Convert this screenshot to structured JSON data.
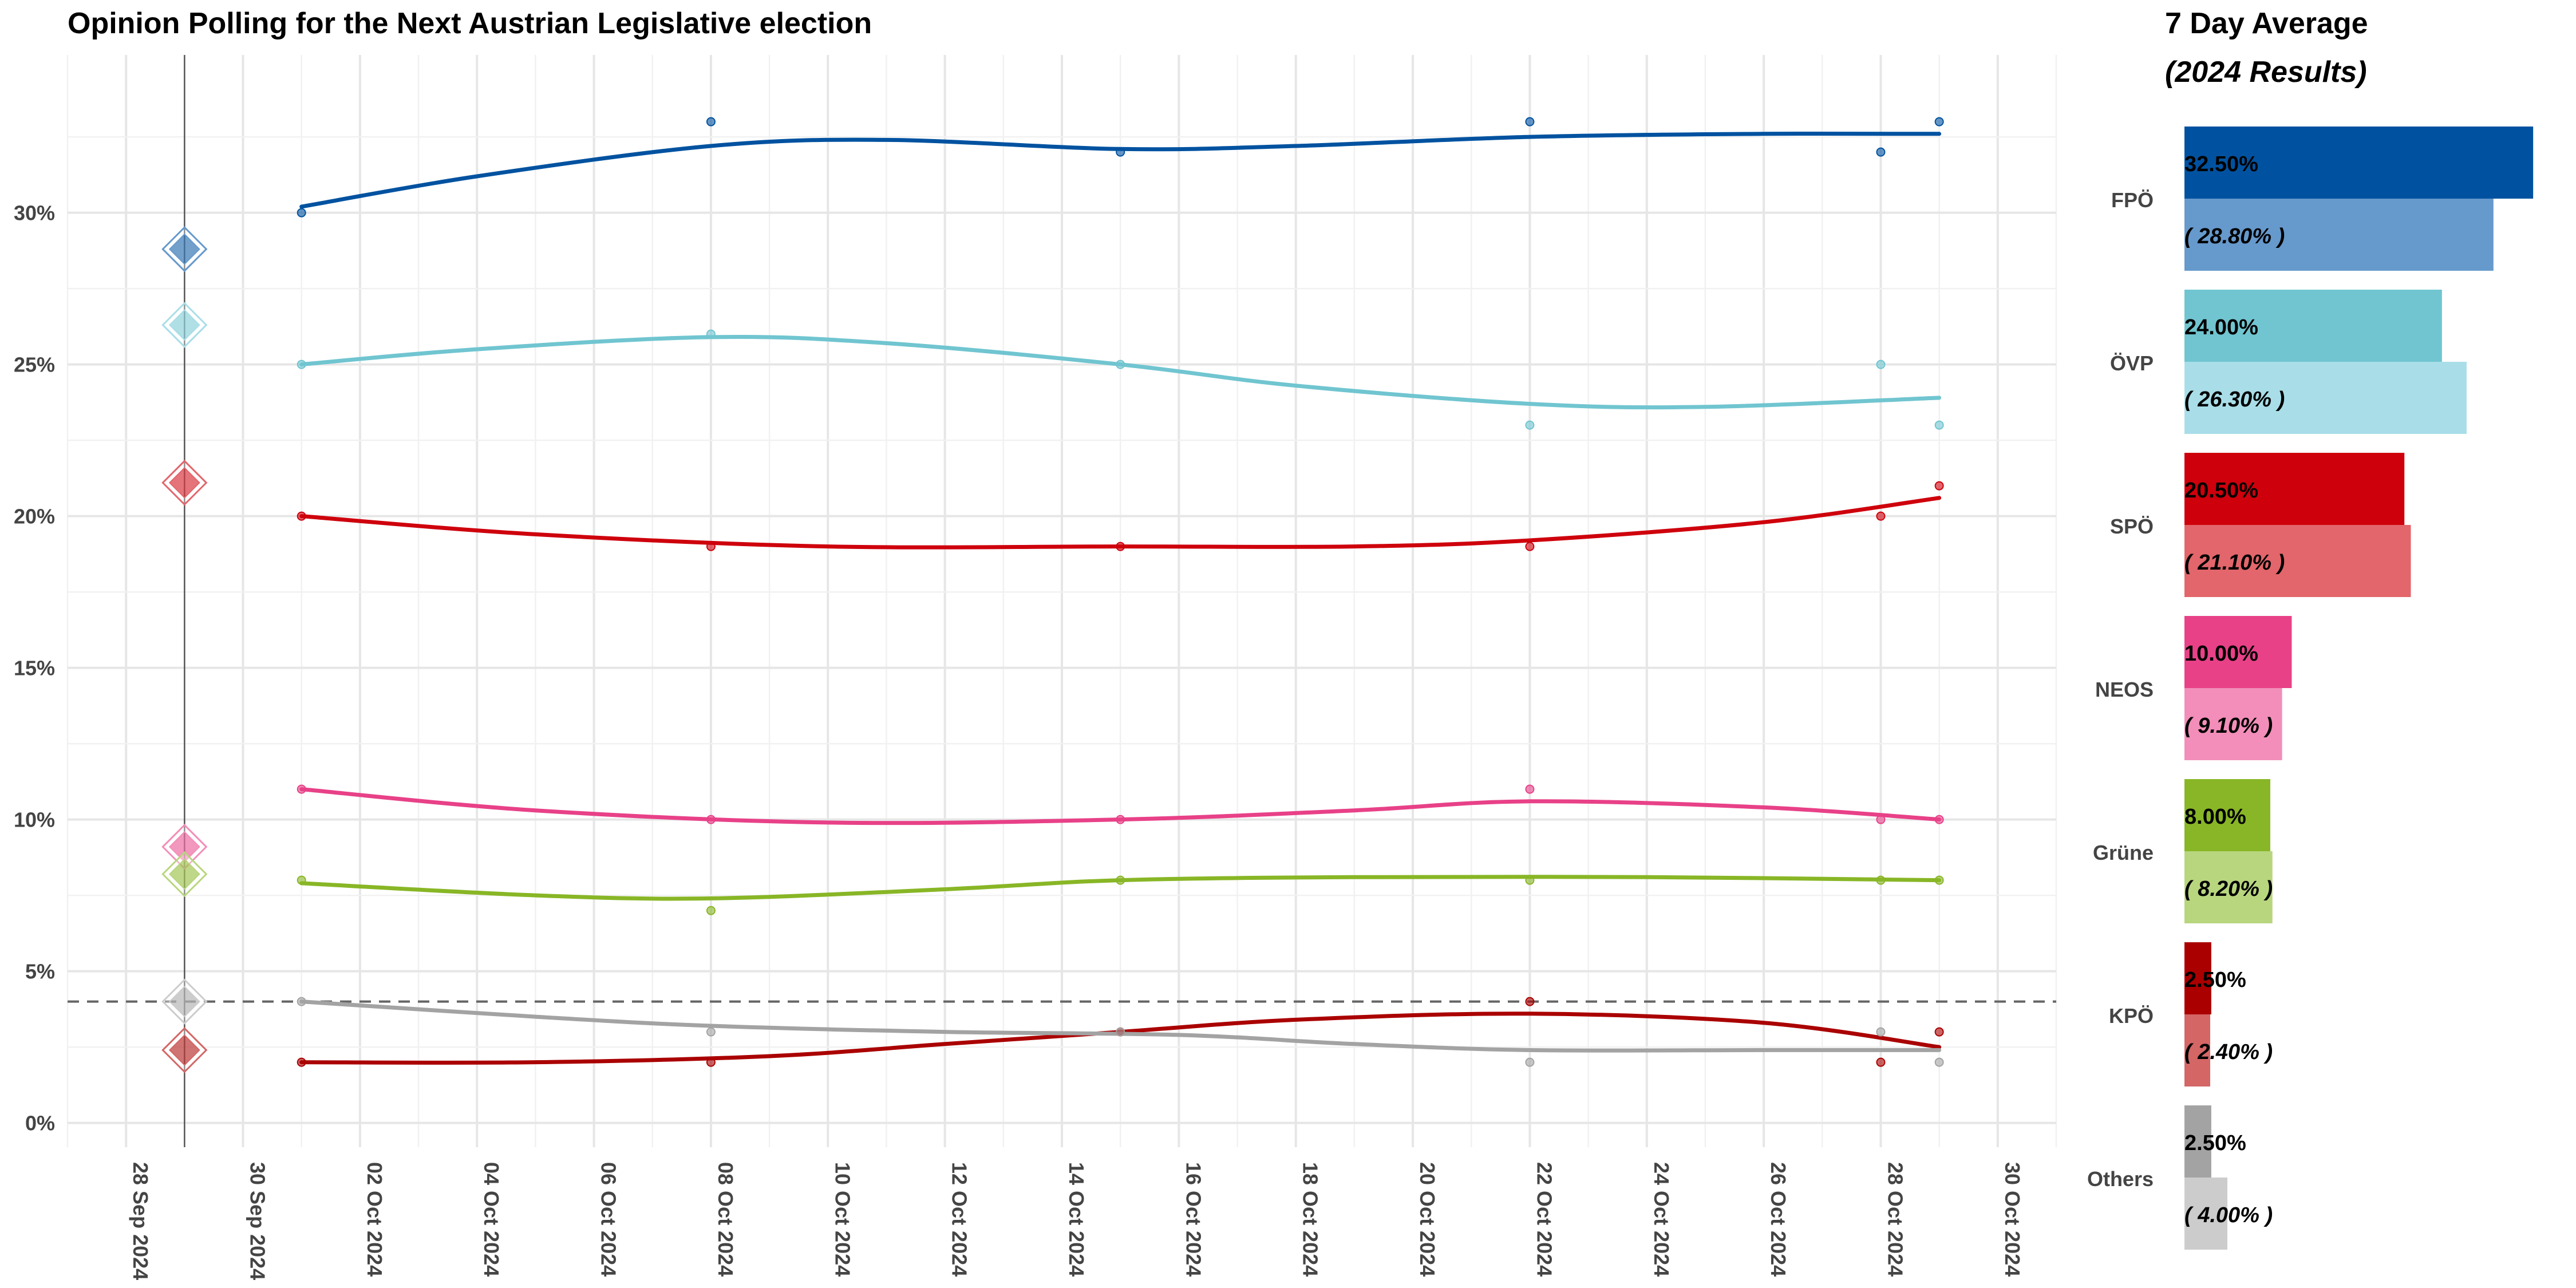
{
  "chart_data": [
    {
      "type": "line",
      "title": "Opinion Polling for the Next Austrian Legislative election",
      "xlabel": "",
      "ylabel": "",
      "x_range": [
        "2024-09-27",
        "2024-10-31"
      ],
      "x_ticks": [
        "28 Sep 2024",
        "30 Sep 2024",
        "02 Oct 2024",
        "04 Oct 2024",
        "06 Oct 2024",
        "08 Oct 2024",
        "10 Oct 2024",
        "12 Oct 2024",
        "14 Oct 2024",
        "16 Oct 2024",
        "18 Oct 2024",
        "20 Oct 2024",
        "22 Oct 2024",
        "24 Oct 2024",
        "26 Oct 2024",
        "28 Oct 2024",
        "30 Oct 2024"
      ],
      "y_range": [
        -0.8,
        35.2
      ],
      "y_ticks": [
        "0%",
        "5%",
        "10%",
        "15%",
        "20%",
        "25%",
        "30%"
      ],
      "grid": true,
      "threshold_line": 4,
      "election_date": "2024-09-29",
      "series": [
        {
          "name": "FPÖ",
          "color": "#0052A0",
          "light_color": "#6699CC",
          "result": 28.8,
          "polls": [
            [
              "2024-10-01",
              30
            ],
            [
              "2024-10-08",
              33
            ],
            [
              "2024-10-15",
              32
            ],
            [
              "2024-10-22",
              33
            ],
            [
              "2024-10-28",
              32
            ],
            [
              "2024-10-29",
              33
            ]
          ],
          "trend": [
            [
              "2024-10-01",
              30.2
            ],
            [
              "2024-10-04",
              31.2
            ],
            [
              "2024-10-08",
              32.2
            ],
            [
              "2024-10-11",
              32.4
            ],
            [
              "2024-10-15",
              32.1
            ],
            [
              "2024-10-18",
              32.2
            ],
            [
              "2024-10-22",
              32.5
            ],
            [
              "2024-10-26",
              32.6
            ],
            [
              "2024-10-29",
              32.6
            ]
          ]
        },
        {
          "name": "ÖVP",
          "color": "#70C5D0",
          "light_color": "#A9DEE8",
          "result": 26.3,
          "polls": [
            [
              "2024-10-01",
              25
            ],
            [
              "2024-10-08",
              26
            ],
            [
              "2024-10-15",
              25
            ],
            [
              "2024-10-22",
              23
            ],
            [
              "2024-10-28",
              25
            ],
            [
              "2024-10-29",
              23
            ]
          ],
          "trend": [
            [
              "2024-10-01",
              25.0
            ],
            [
              "2024-10-04",
              25.5
            ],
            [
              "2024-10-08",
              25.9
            ],
            [
              "2024-10-11",
              25.7
            ],
            [
              "2024-10-15",
              25.0
            ],
            [
              "2024-10-18",
              24.3
            ],
            [
              "2024-10-22",
              23.7
            ],
            [
              "2024-10-25",
              23.6
            ],
            [
              "2024-10-29",
              23.9
            ]
          ]
        },
        {
          "name": "SPÖ",
          "color": "#CE000C",
          "light_color": "#E2666B",
          "result": 21.1,
          "polls": [
            [
              "2024-10-01",
              20
            ],
            [
              "2024-10-08",
              19
            ],
            [
              "2024-10-15",
              19
            ],
            [
              "2024-10-22",
              19
            ],
            [
              "2024-10-28",
              20
            ],
            [
              "2024-10-29",
              21
            ]
          ],
          "trend": [
            [
              "2024-10-01",
              20.0
            ],
            [
              "2024-10-05",
              19.4
            ],
            [
              "2024-10-10",
              19.0
            ],
            [
              "2024-10-15",
              19.0
            ],
            [
              "2024-10-19",
              19.0
            ],
            [
              "2024-10-22",
              19.2
            ],
            [
              "2024-10-26",
              19.8
            ],
            [
              "2024-10-29",
              20.6
            ]
          ]
        },
        {
          "name": "NEOS",
          "color": "#E84188",
          "light_color": "#F28EB9",
          "result": 9.1,
          "polls": [
            [
              "2024-10-01",
              11
            ],
            [
              "2024-10-08",
              10
            ],
            [
              "2024-10-15",
              10
            ],
            [
              "2024-10-22",
              11
            ],
            [
              "2024-10-28",
              10
            ],
            [
              "2024-10-29",
              10
            ]
          ],
          "trend": [
            [
              "2024-10-01",
              11.0
            ],
            [
              "2024-10-05",
              10.3
            ],
            [
              "2024-10-10",
              9.9
            ],
            [
              "2024-10-15",
              10.0
            ],
            [
              "2024-10-19",
              10.3
            ],
            [
              "2024-10-22",
              10.6
            ],
            [
              "2024-10-26",
              10.4
            ],
            [
              "2024-10-29",
              10.0
            ]
          ]
        },
        {
          "name": "Grüne",
          "color": "#88B626",
          "light_color": "#B8D67E",
          "result": 8.2,
          "polls": [
            [
              "2024-10-01",
              8
            ],
            [
              "2024-10-08",
              7
            ],
            [
              "2024-10-15",
              8
            ],
            [
              "2024-10-22",
              8
            ],
            [
              "2024-10-28",
              8
            ],
            [
              "2024-10-29",
              8
            ]
          ],
          "trend": [
            [
              "2024-10-01",
              7.9
            ],
            [
              "2024-10-05",
              7.5
            ],
            [
              "2024-10-08",
              7.4
            ],
            [
              "2024-10-12",
              7.7
            ],
            [
              "2024-10-15",
              8.0
            ],
            [
              "2024-10-19",
              8.1
            ],
            [
              "2024-10-24",
              8.1
            ],
            [
              "2024-10-29",
              8.0
            ]
          ]
        },
        {
          "name": "KPÖ",
          "color": "#AA0000",
          "light_color": "#D46666",
          "result": 2.4,
          "polls": [
            [
              "2024-10-01",
              2
            ],
            [
              "2024-10-08",
              2
            ],
            [
              "2024-10-15",
              3
            ],
            [
              "2024-10-22",
              4
            ],
            [
              "2024-10-28",
              2
            ],
            [
              "2024-10-29",
              3
            ]
          ],
          "trend": [
            [
              "2024-10-01",
              2.0
            ],
            [
              "2024-10-05",
              2.0
            ],
            [
              "2024-10-09",
              2.2
            ],
            [
              "2024-10-12",
              2.6
            ],
            [
              "2024-10-15",
              3.0
            ],
            [
              "2024-10-18",
              3.4
            ],
            [
              "2024-10-22",
              3.6
            ],
            [
              "2024-10-26",
              3.3
            ],
            [
              "2024-10-29",
              2.5
            ]
          ]
        },
        {
          "name": "Others",
          "color": "#A3A3A3",
          "light_color": "#CCCCCC",
          "result": 4.0,
          "polls": [
            [
              "2024-10-01",
              4
            ],
            [
              "2024-10-08",
              3
            ],
            [
              "2024-10-15",
              3
            ],
            [
              "2024-10-22",
              2
            ],
            [
              "2024-10-28",
              3
            ],
            [
              "2024-10-29",
              2
            ]
          ],
          "trend": [
            [
              "2024-10-01",
              4.0
            ],
            [
              "2024-10-05",
              3.5
            ],
            [
              "2024-10-08",
              3.2
            ],
            [
              "2024-10-12",
              3.0
            ],
            [
              "2024-10-16",
              2.9
            ],
            [
              "2024-10-19",
              2.6
            ],
            [
              "2024-10-22",
              2.4
            ],
            [
              "2024-10-26",
              2.4
            ],
            [
              "2024-10-29",
              2.4
            ]
          ]
        }
      ]
    },
    {
      "type": "bar",
      "title": "7 Day Average",
      "subtitle": "(2024 Results)",
      "orientation": "horizontal",
      "x_range": [
        0,
        35
      ],
      "categories": [
        "FPÖ",
        "ÖVP",
        "SPÖ",
        "NEOS",
        "Grüne",
        "KPÖ",
        "Others"
      ],
      "series": [
        {
          "values": [
            32.5,
            24.0,
            20.5,
            10.0,
            8.0,
            2.5,
            2.5
          ],
          "labels": [
            "32.50%",
            "24.00%",
            "20.50%",
            "10.00%",
            "8.00%",
            "2.50%",
            "2.50%"
          ]
        },
        {
          "values": [
            28.8,
            26.3,
            21.1,
            9.1,
            8.2,
            2.4,
            4.0
          ],
          "labels": [
            "( 28.80% )",
            "( 26.30% )",
            "( 21.10% )",
            "( 9.10% )",
            "( 8.20% )",
            "( 2.40% )",
            "( 4.00% )"
          ]
        }
      ]
    }
  ]
}
